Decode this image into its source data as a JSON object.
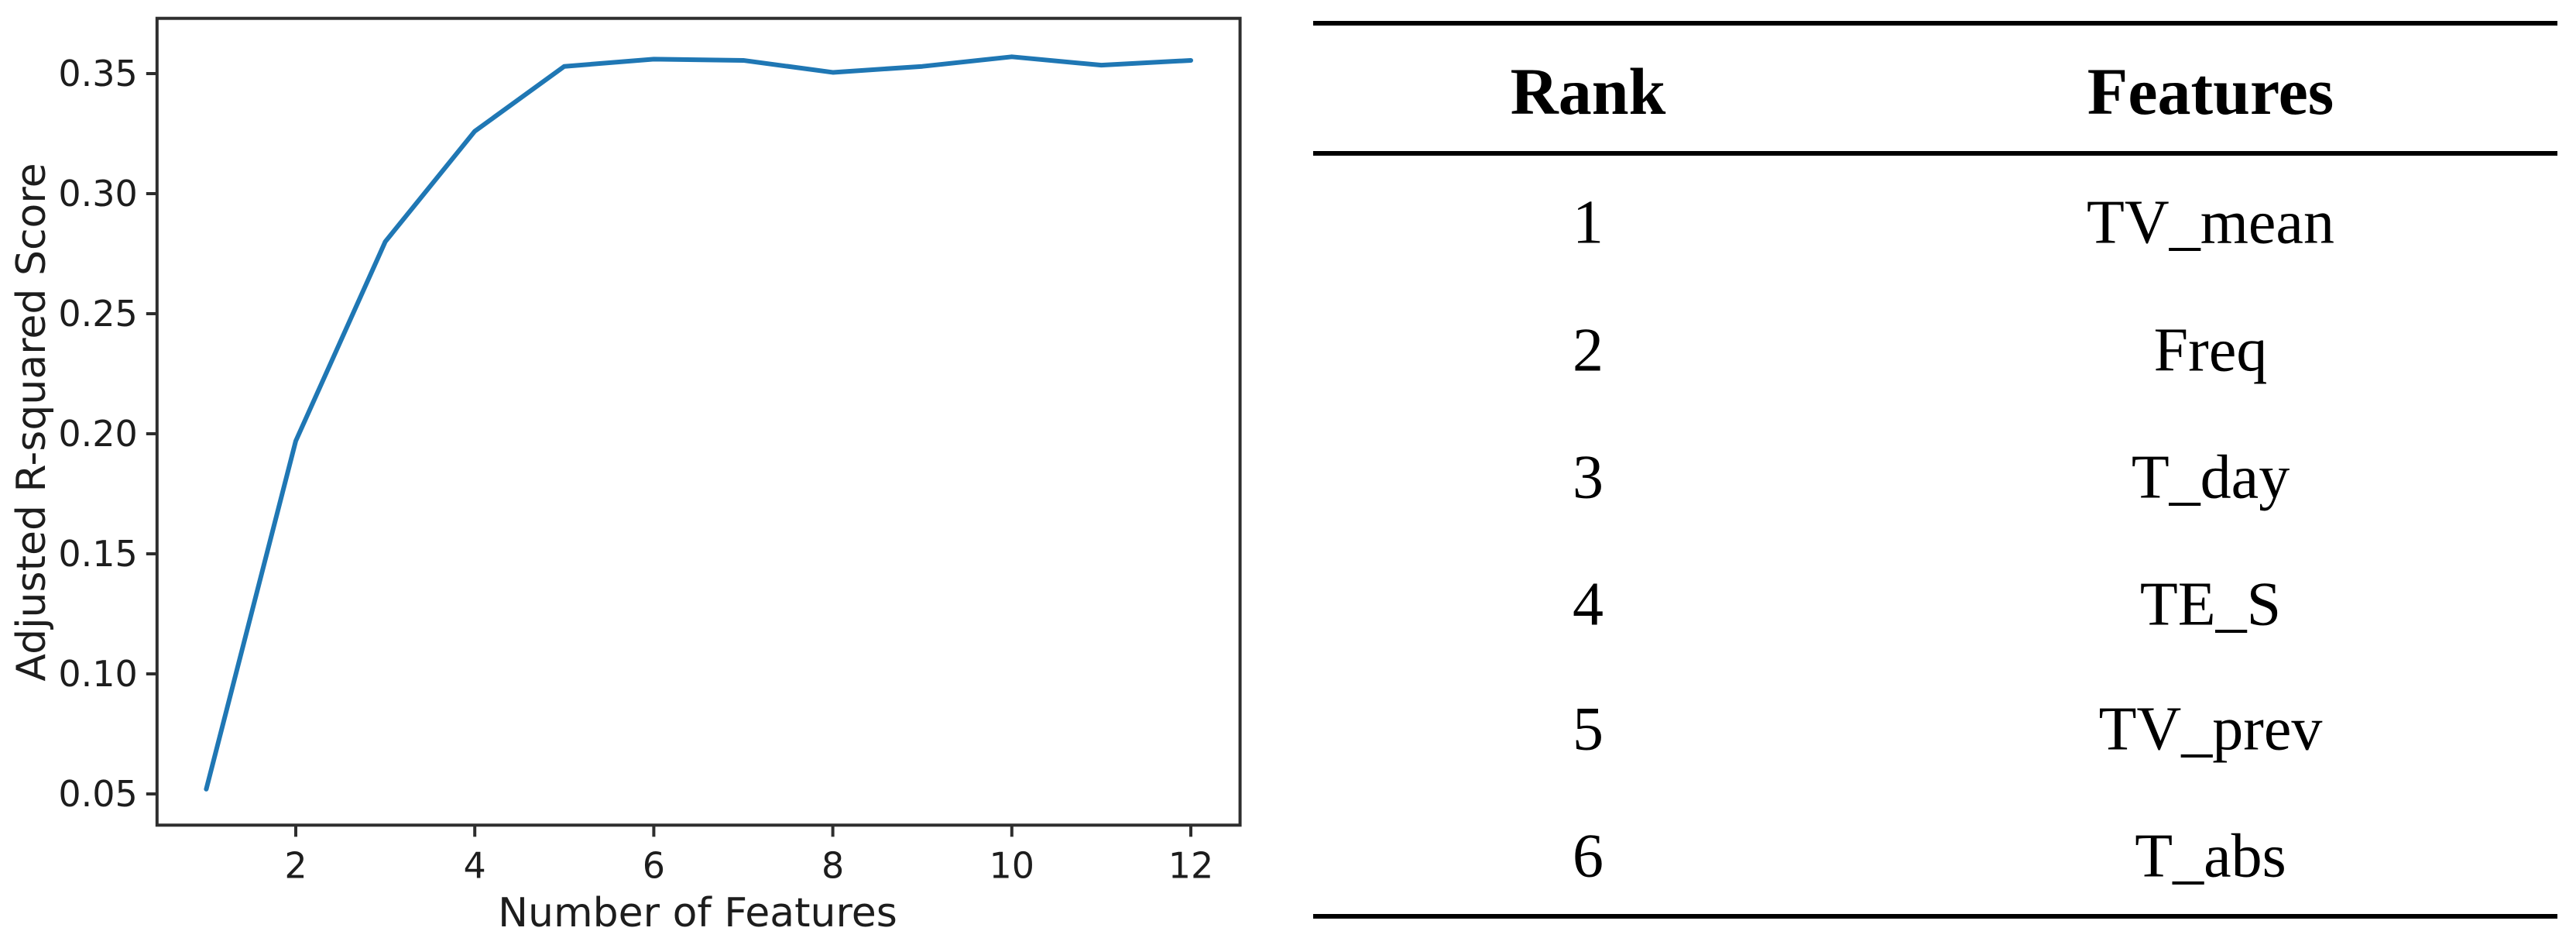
{
  "chart_data": {
    "type": "line",
    "title": "",
    "xlabel": "Number of Features",
    "ylabel": "Adjusted R-squared Score",
    "x": [
      1,
      2,
      3,
      4,
      5,
      6,
      7,
      8,
      9,
      10,
      11,
      12
    ],
    "series": [
      {
        "name": "Adjusted R-squared Score",
        "values": [
          0.052,
          0.197,
          0.28,
          0.326,
          0.353,
          0.356,
          0.3555,
          0.3505,
          0.353,
          0.357,
          0.3535,
          0.3555
        ]
      }
    ],
    "xticks": [
      2,
      4,
      6,
      8,
      10,
      12
    ],
    "yticks": [
      0.05,
      0.1,
      0.15,
      0.2,
      0.25,
      0.3,
      0.35
    ],
    "xlim": [
      0.45,
      12.55
    ],
    "ylim": [
      0.037,
      0.373
    ],
    "grid": false,
    "legend_position": "none",
    "line_color": "#1f77b4",
    "spine_color": "#2e2e2e",
    "text_color": "#1d1d1d"
  },
  "table": {
    "columns": {
      "rank": "Rank",
      "features": "Features"
    },
    "rows": [
      {
        "rank": "1",
        "feature": "TV_mean"
      },
      {
        "rank": "2",
        "feature": "Freq"
      },
      {
        "rank": "3",
        "feature": "T_day"
      },
      {
        "rank": "4",
        "feature": "TE_S"
      },
      {
        "rank": "5",
        "feature": "TV_prev"
      },
      {
        "rank": "6",
        "feature": "T_abs"
      }
    ]
  }
}
